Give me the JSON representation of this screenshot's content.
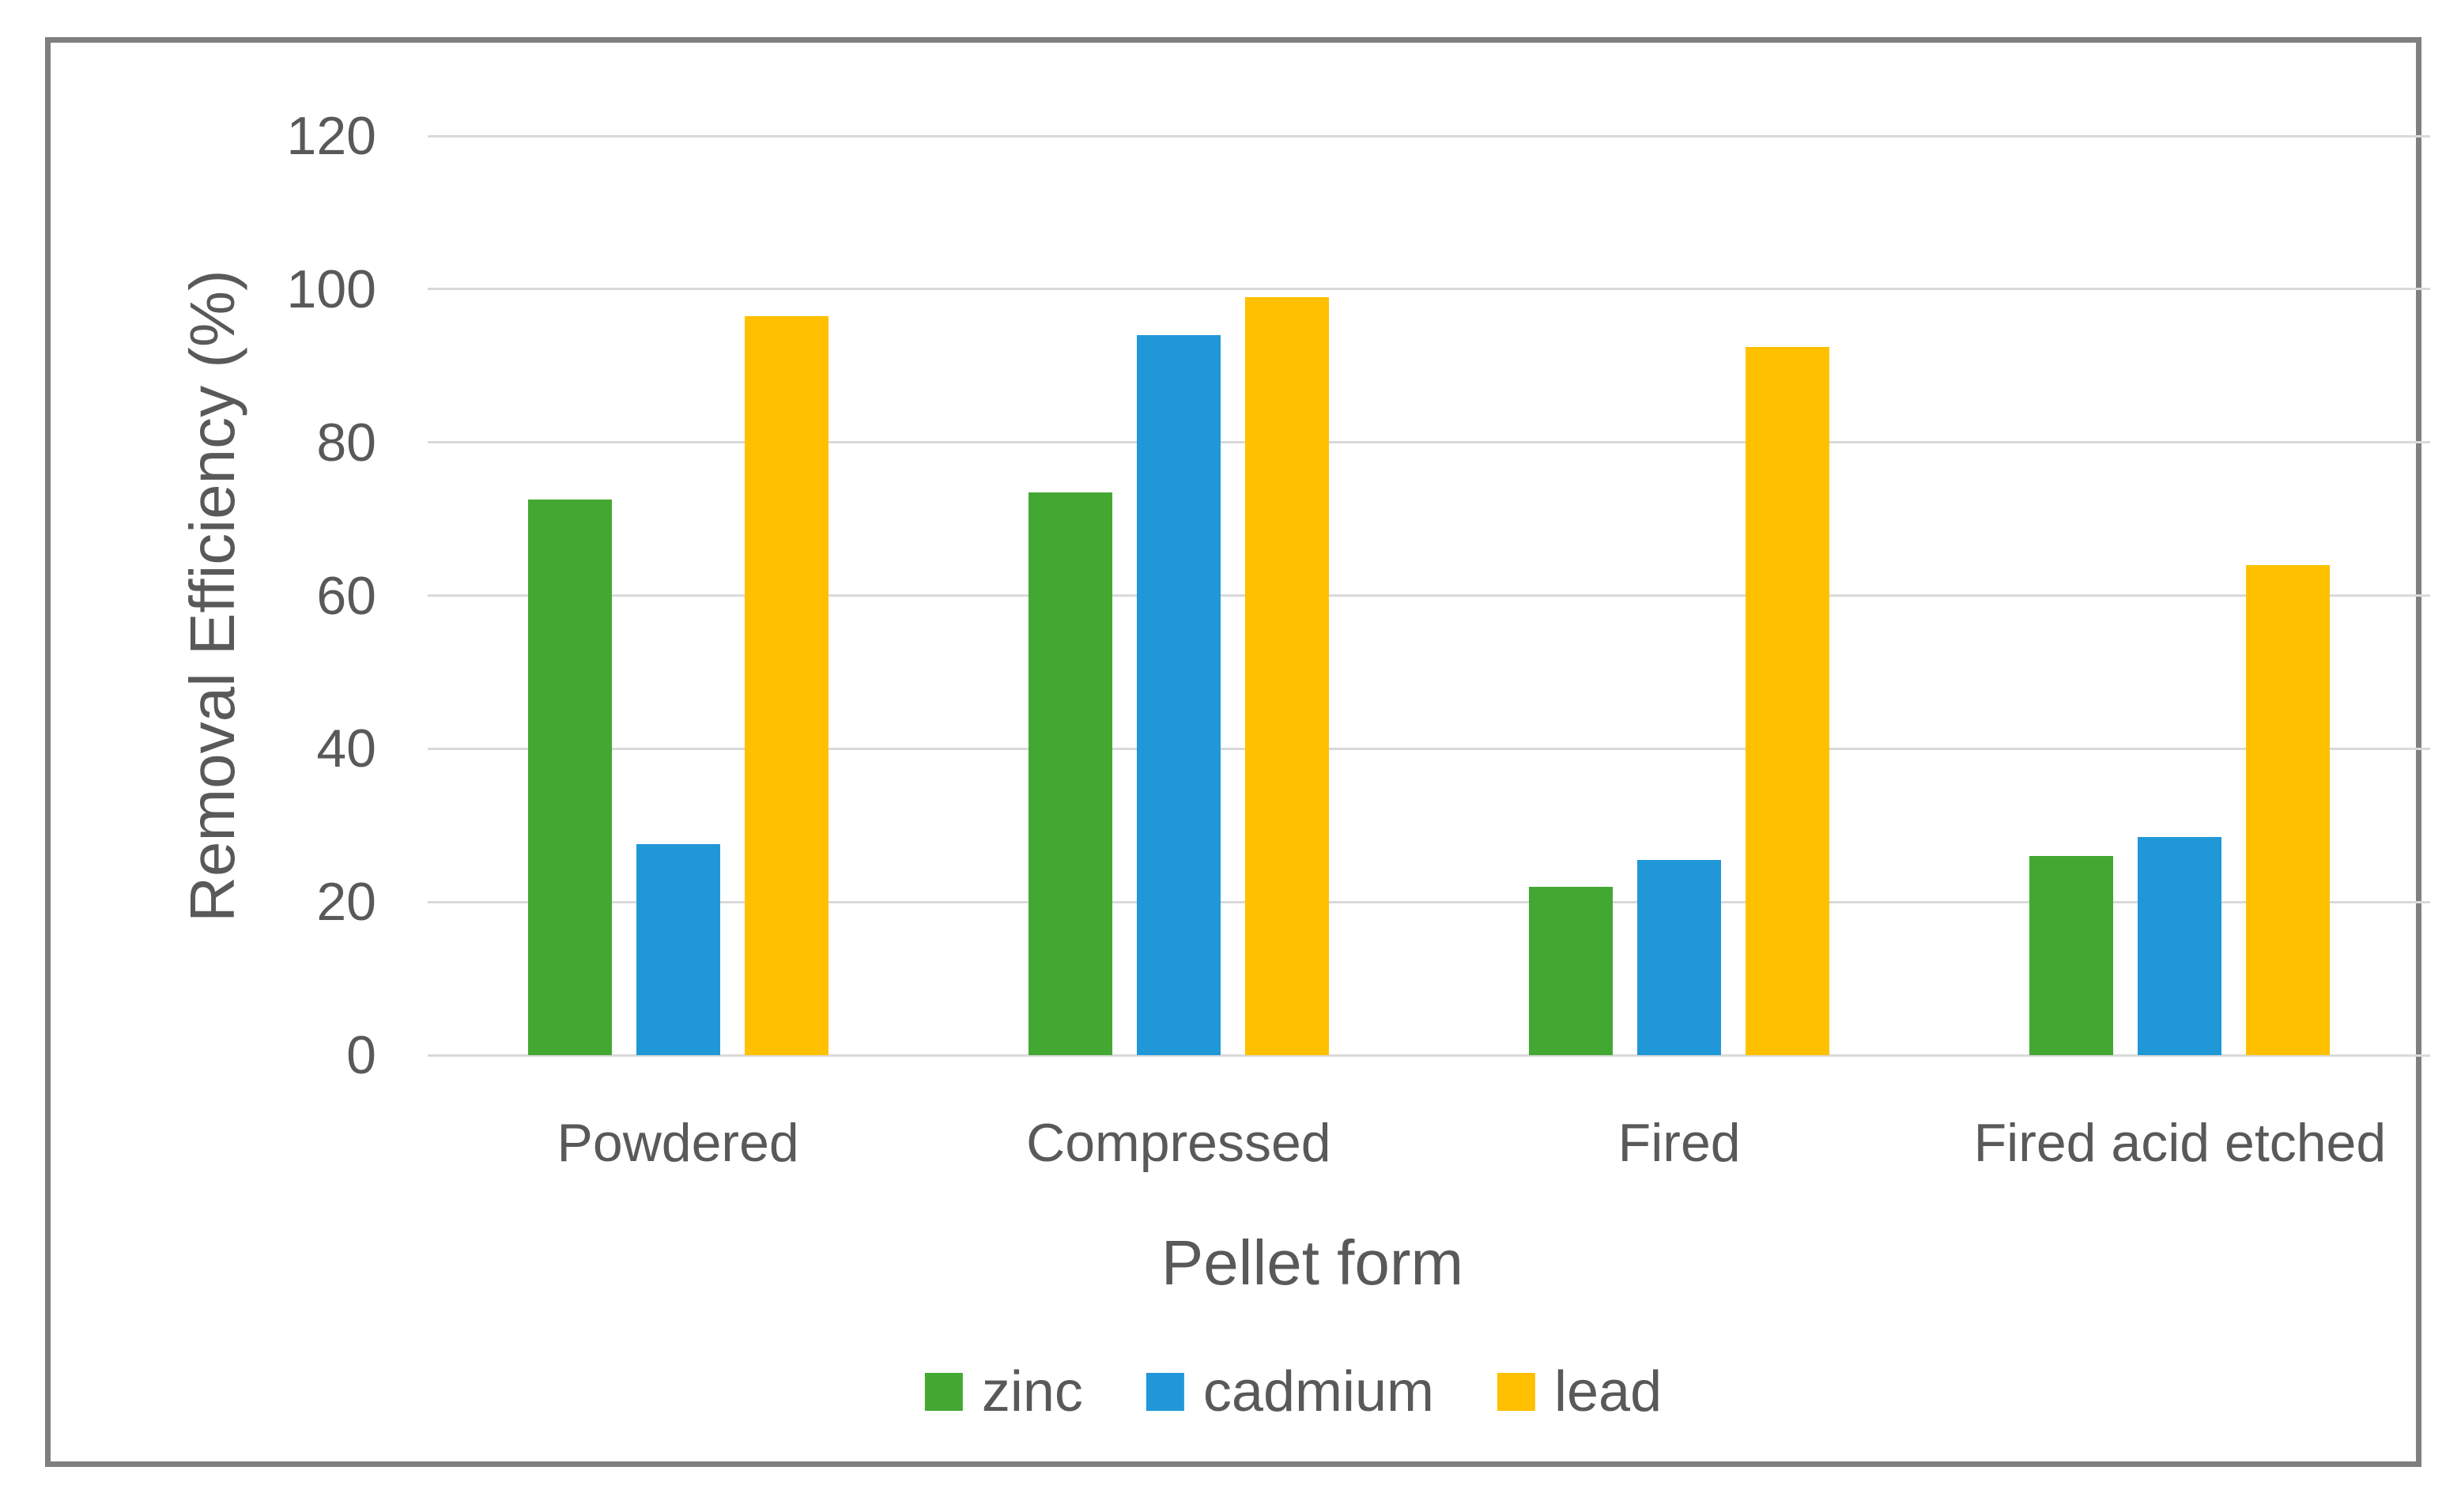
{
  "chart_data": {
    "type": "bar",
    "title": "",
    "categories": [
      "Powdered",
      "Compressed",
      "Fired",
      "Fired acid etched"
    ],
    "series": [
      {
        "name": "zinc",
        "color": "#43a832",
        "values": [
          72.5,
          73.5,
          22.0,
          26.0
        ]
      },
      {
        "name": "cadmium",
        "color": "#2098d8",
        "values": [
          27.5,
          94.0,
          25.5,
          28.5
        ]
      },
      {
        "name": "lead",
        "color": "#ffc000",
        "values": [
          96.5,
          99.0,
          92.5,
          64.0
        ]
      }
    ],
    "xlabel": "Pellet form",
    "ylabel": "Removal Efficiency (%)",
    "ylim": [
      0,
      120
    ],
    "yticks": [
      0,
      20,
      40,
      60,
      80,
      100,
      120
    ],
    "grid": true,
    "legend_position": "bottom"
  },
  "colors": {
    "text": "#595959",
    "gridline": "#d9d9d9",
    "frame_border": "#7f7f7f",
    "background": "#ffffff"
  }
}
